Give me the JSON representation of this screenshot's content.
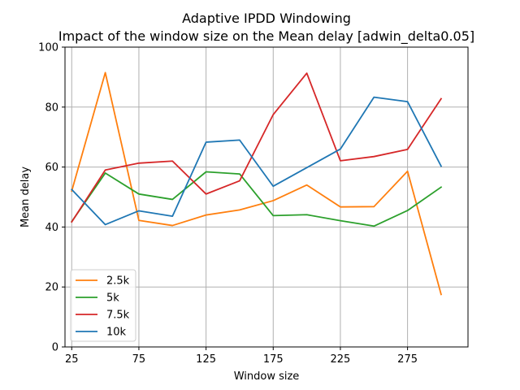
{
  "chart_data": {
    "type": "line",
    "title": "Adaptive IPDD Windowing",
    "subtitle": "Impact of the window size on the Mean delay [adwin_delta0.05]",
    "xlabel": "Window size",
    "ylabel": "Mean delay",
    "xlim": [
      20,
      320
    ],
    "ylim": [
      0,
      100
    ],
    "xticks": [
      25,
      75,
      125,
      175,
      225,
      275
    ],
    "yticks": [
      0,
      20,
      40,
      60,
      80,
      100
    ],
    "grid": true,
    "legend_position": "lower-left",
    "x": [
      25,
      50,
      75,
      100,
      125,
      150,
      175,
      200,
      225,
      250,
      275,
      300
    ],
    "series": [
      {
        "name": "2.5k",
        "color": "#ff7f0e",
        "values": [
          52.0,
          91.5,
          42.2,
          40.5,
          44.0,
          45.7,
          48.8,
          54.0,
          46.7,
          46.8,
          58.6,
          17.5
        ]
      },
      {
        "name": "5k",
        "color": "#2ca02c",
        "values": [
          41.8,
          58.0,
          51.0,
          49.2,
          58.4,
          57.7,
          43.8,
          44.1,
          42.1,
          40.3,
          45.5,
          53.3
        ]
      },
      {
        "name": "7.5k",
        "color": "#d62728",
        "values": [
          41.7,
          59.0,
          61.3,
          62.0,
          51.0,
          55.4,
          77.5,
          91.3,
          62.1,
          63.5,
          65.9,
          82.8
        ]
      },
      {
        "name": "10k",
        "color": "#1f77b4",
        "values": [
          52.5,
          40.8,
          45.4,
          43.6,
          68.3,
          69.0,
          53.6,
          59.8,
          66.0,
          83.3,
          81.8,
          60.3
        ]
      }
    ]
  }
}
